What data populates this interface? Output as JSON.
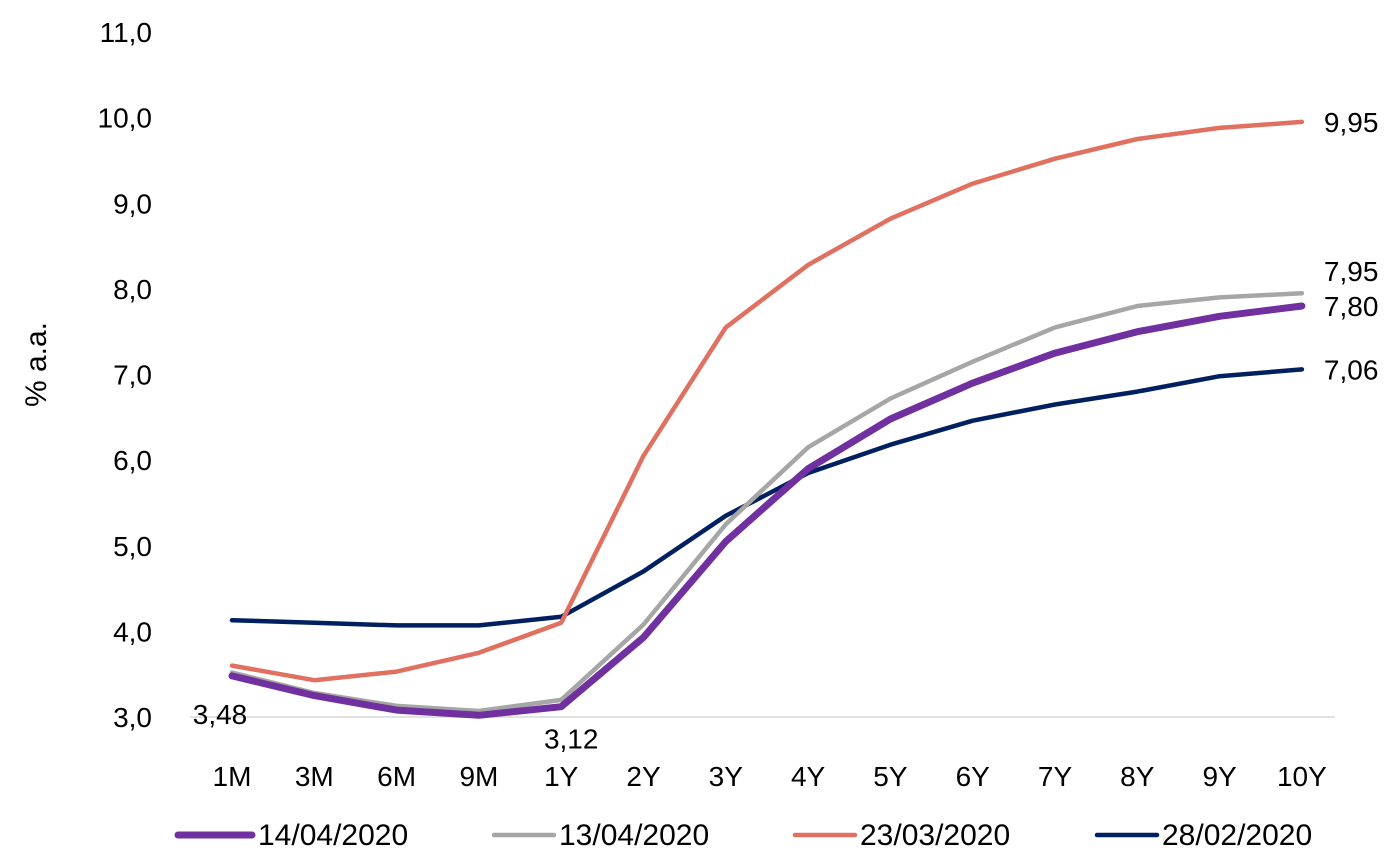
{
  "chart_data": {
    "type": "line",
    "ylabel": "% a.a.",
    "ylim": [
      3.0,
      11.0
    ],
    "yticks": [
      "3,0",
      "4,0",
      "5,0",
      "6,0",
      "7,0",
      "8,0",
      "9,0",
      "10,0",
      "11,0"
    ],
    "grid": false,
    "legend_position": "bottom",
    "categories": [
      "1M",
      "3M",
      "6M",
      "9M",
      "1Y",
      "2Y",
      "3Y",
      "4Y",
      "5Y",
      "6Y",
      "7Y",
      "8Y",
      "9Y",
      "10Y"
    ],
    "series": [
      {
        "name": "14/04/2020",
        "color": "#7030A0",
        "values": [
          3.48,
          3.25,
          3.08,
          3.02,
          3.12,
          3.93,
          5.05,
          5.9,
          6.48,
          6.9,
          7.25,
          7.5,
          7.68,
          7.8
        ]
      },
      {
        "name": "13/04/2020",
        "color": "#A6A6A6",
        "values": [
          3.52,
          3.28,
          3.13,
          3.07,
          3.2,
          4.08,
          5.25,
          6.15,
          6.72,
          7.15,
          7.55,
          7.8,
          7.9,
          7.95
        ]
      },
      {
        "name": "23/03/2020",
        "color": "#E07060",
        "values": [
          3.6,
          3.43,
          3.53,
          3.75,
          4.1,
          6.05,
          7.55,
          8.28,
          8.82,
          9.23,
          9.52,
          9.75,
          9.88,
          9.95
        ]
      },
      {
        "name": "28/02/2020",
        "color": "#002060",
        "values": [
          4.13,
          4.1,
          4.07,
          4.07,
          4.17,
          4.7,
          5.35,
          5.85,
          6.18,
          6.46,
          6.65,
          6.8,
          6.98,
          7.06
        ]
      }
    ],
    "data_labels": [
      {
        "series": 0,
        "index": 0,
        "text": "3,48",
        "position": "below-left"
      },
      {
        "series": 0,
        "index": 4,
        "text": "3,12",
        "position": "below"
      },
      {
        "series": 0,
        "index": 13,
        "text": "7,80",
        "position": "right"
      },
      {
        "series": 1,
        "index": 13,
        "text": "7,95",
        "position": "above-right"
      },
      {
        "series": 2,
        "index": 13,
        "text": "9,95",
        "position": "right"
      },
      {
        "series": 3,
        "index": 13,
        "text": "7,06",
        "position": "right"
      }
    ]
  }
}
